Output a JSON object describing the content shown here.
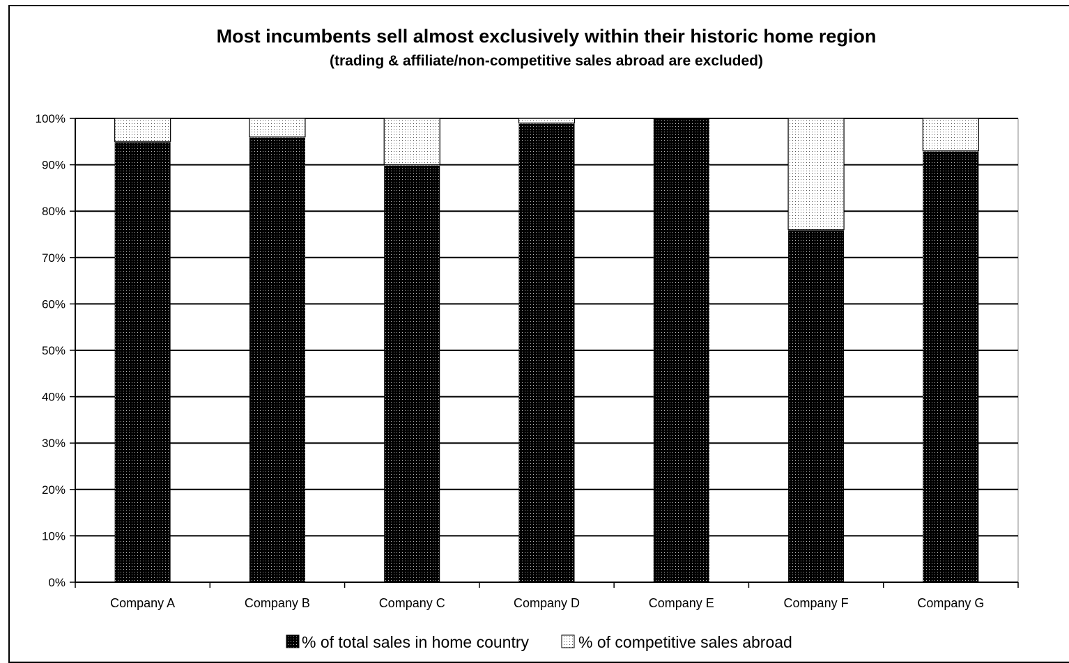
{
  "chart_data": {
    "type": "bar",
    "stacked": true,
    "title": "Most incumbents sell almost exclusively within their historic home region",
    "subtitle": "(trading & affiliate/non-competitive sales abroad are excluded)",
    "categories": [
      "Company A",
      "Company B",
      "Company C",
      "Company D",
      "Company E",
      "Company F",
      "Company G"
    ],
    "series": [
      {
        "name": "% of total sales in home country",
        "values": [
          95,
          96,
          90,
          99,
          100,
          76,
          93
        ],
        "color": "#000000"
      },
      {
        "name": "% of competitive sales abroad",
        "values": [
          5,
          4,
          10,
          1,
          0,
          24,
          7
        ],
        "color": "#e6e6e6"
      }
    ],
    "ylim": [
      0,
      100
    ],
    "yticks": [
      "0%",
      "10%",
      "20%",
      "30%",
      "40%",
      "50%",
      "60%",
      "70%",
      "80%",
      "90%",
      "100%"
    ],
    "grid": true,
    "legend": "bottom"
  }
}
